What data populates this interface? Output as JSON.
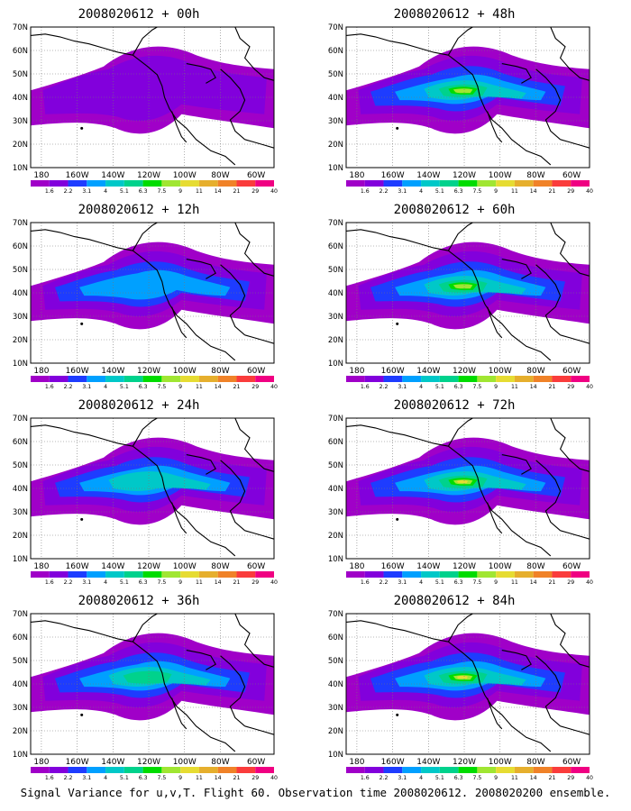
{
  "caption": "Signal Variance for u,v,T. Flight 60. Observation time 2008020612. 2008020200 ensemble.",
  "axes": {
    "lat_labels": [
      "70N",
      "60N",
      "50N",
      "40N",
      "30N",
      "20N",
      "10N"
    ],
    "lon_labels": [
      "180",
      "160W",
      "140W",
      "120W",
      "100W",
      "80W",
      "60W"
    ]
  },
  "colorbar": {
    "labels": [
      "1.6",
      "2.2",
      "3.1",
      "4",
      "5.1",
      "6.3",
      "7.5",
      "9",
      "11",
      "14",
      "21",
      "29",
      "40"
    ],
    "colors": [
      "#a000c8",
      "#8200dc",
      "#1e3cff",
      "#00a0ff",
      "#00c8c8",
      "#00d28c",
      "#00dc00",
      "#a0e632",
      "#e6dc32",
      "#e6af2d",
      "#f08228",
      "#fa3c3c",
      "#f00082"
    ]
  },
  "panels": [
    {
      "title": "2008020612 + 00h",
      "max_level": 2
    },
    {
      "title": "2008020612 + 48h",
      "max_level": 8
    },
    {
      "title": "2008020612 + 12h",
      "max_level": 4
    },
    {
      "title": "2008020612 + 60h",
      "max_level": 8
    },
    {
      "title": "2008020612 + 24h",
      "max_level": 5
    },
    {
      "title": "2008020612 + 72h",
      "max_level": 9
    },
    {
      "title": "2008020612 + 36h",
      "max_level": 6
    },
    {
      "title": "2008020612 + 84h",
      "max_level": 9
    }
  ]
}
